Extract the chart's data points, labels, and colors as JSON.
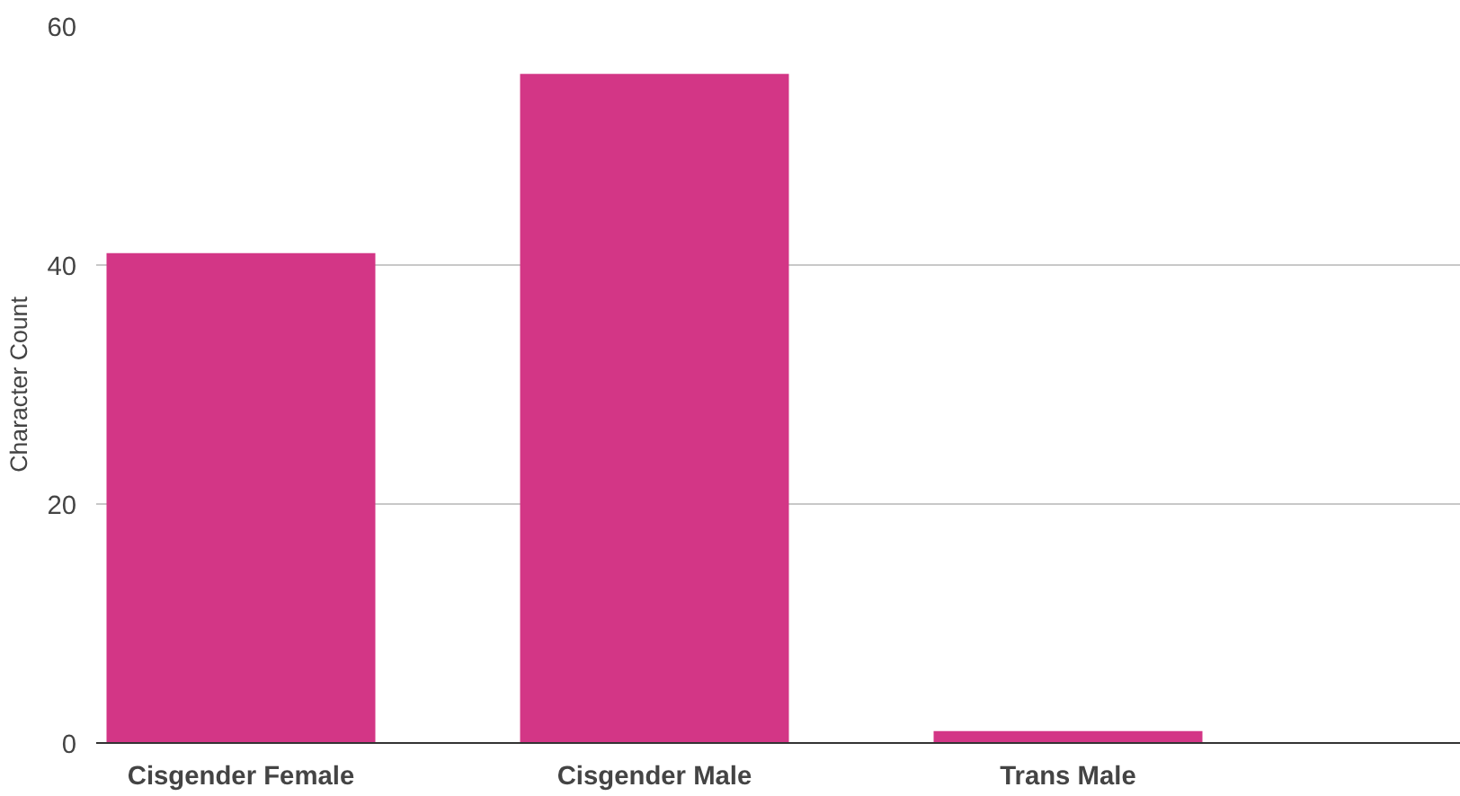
{
  "chart_data": {
    "type": "bar",
    "ylabel": "Character Count",
    "categories": [
      "Cisgender Female",
      "Cisgender Male",
      "Trans Male"
    ],
    "values": [
      41,
      56,
      1
    ],
    "color": "#d33686",
    "ylim": [
      0,
      60
    ],
    "yticks": [
      0,
      20,
      40,
      60
    ],
    "grid": "y"
  }
}
